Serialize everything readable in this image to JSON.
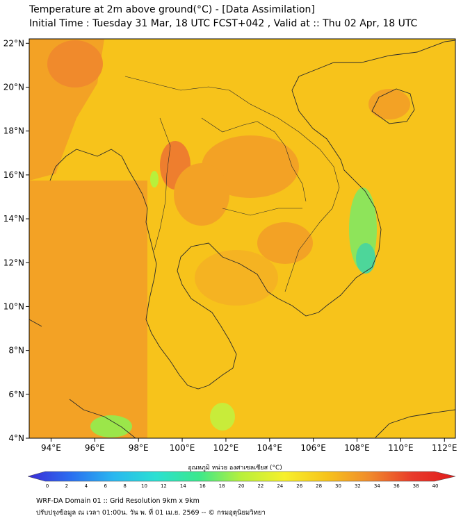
{
  "title": {
    "line1": "Temperature at 2m above ground(°C) - [Data Assimilation]",
    "line2": "Initial Time : Tuesday 31 Mar, 18 UTC FCST+042 , Valid at :: Thu 02 Apr, 18 UTC"
  },
  "map": {
    "lon_range": [
      93,
      112.5
    ],
    "lat_range": [
      4,
      22.2
    ],
    "lon_ticks": [
      "94°E",
      "96°E",
      "98°E",
      "100°E",
      "102°E",
      "104°E",
      "106°E",
      "108°E",
      "110°E",
      "112°E"
    ],
    "lat_ticks": [
      "22°N",
      "20°N",
      "18°N",
      "16°N",
      "14°N",
      "12°N",
      "10°N",
      "8°N",
      "6°N",
      "4°N"
    ],
    "base_color": "#f7c31b",
    "warm_color": "#f08a2c",
    "cool_color": "#4dd69a",
    "line_color": "#2a2a2a"
  },
  "colorbar": {
    "title": "อุณหภูมิ หน่วย องศาเซลเซียส (°C)",
    "ticks": [
      "0",
      "2",
      "4",
      "6",
      "8",
      "10",
      "12",
      "14",
      "16",
      "18",
      "20",
      "22",
      "24",
      "26",
      "28",
      "30",
      "32",
      "34",
      "36",
      "38",
      "40"
    ],
    "colors": [
      "#3b2bd6",
      "#2b6ef0",
      "#2bb7f0",
      "#2be0d2",
      "#3be88c",
      "#b8f03b",
      "#f7f02b",
      "#f7c31b",
      "#f08a2c",
      "#e83a2b",
      "#e01b1b"
    ]
  },
  "footer": {
    "line1": "WRF-DA Domain 01 :: Grid Resolution 9km x 9km",
    "line2": "ปรับปรุงข้อมูล ณ เวลา 01:00น. วัน พ. ที่ 01 เม.ย. 2569 -- © กรมอุตุนิยมวิทยา"
  }
}
